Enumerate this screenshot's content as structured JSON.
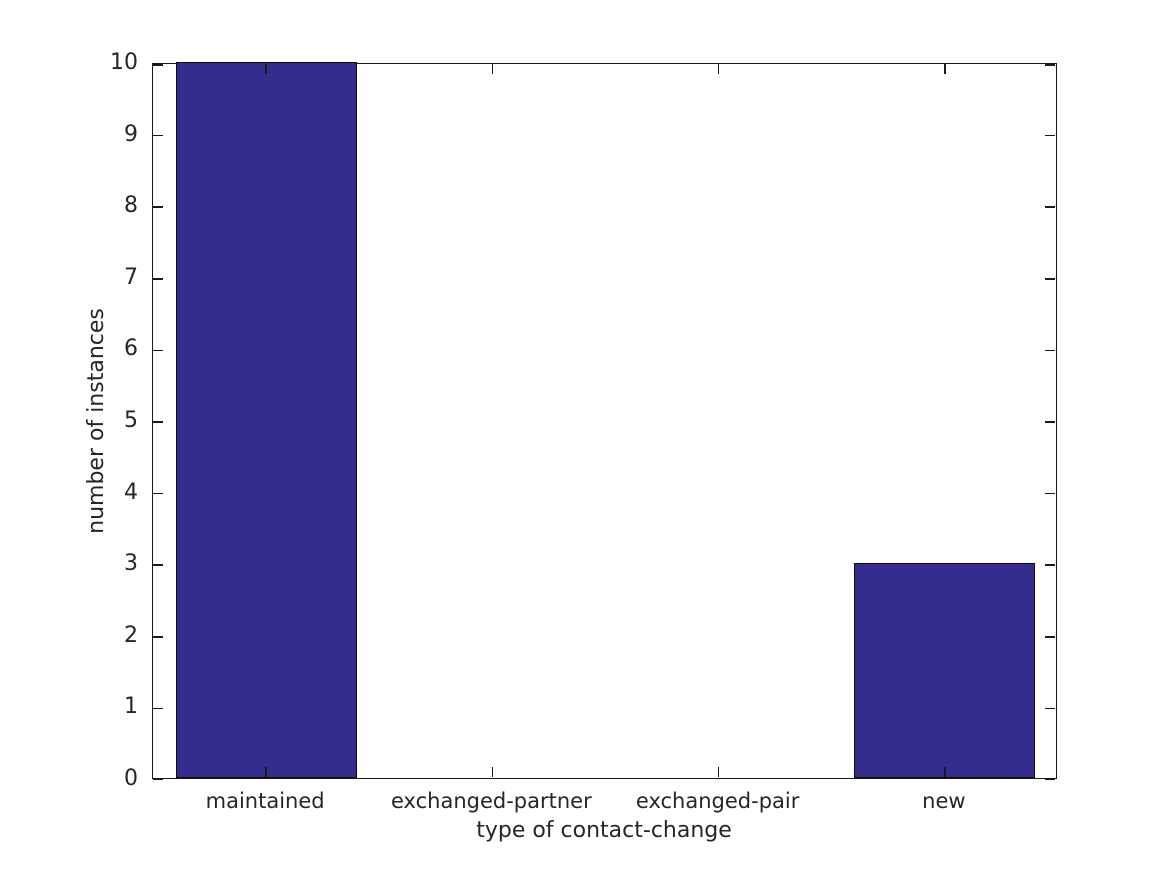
{
  "chart_data": {
    "type": "bar",
    "categories": [
      "maintained",
      "exchanged-partner",
      "exchanged-pair",
      "new"
    ],
    "values": [
      10,
      0,
      0,
      3
    ],
    "title": "",
    "xlabel": "type of contact-change",
    "ylabel": "number of instances",
    "ylim": [
      0,
      10
    ],
    "yticks": [
      0,
      1,
      2,
      3,
      4,
      5,
      6,
      7,
      8,
      9,
      10
    ],
    "bar_width_fraction": 0.8,
    "grid": false,
    "legend": null,
    "colors": {
      "bar_fill": "#342c8c",
      "bar_edge": "#0d0d0d",
      "axis": "#1a1a1a",
      "text": "#262626",
      "background": "#ffffff"
    }
  }
}
